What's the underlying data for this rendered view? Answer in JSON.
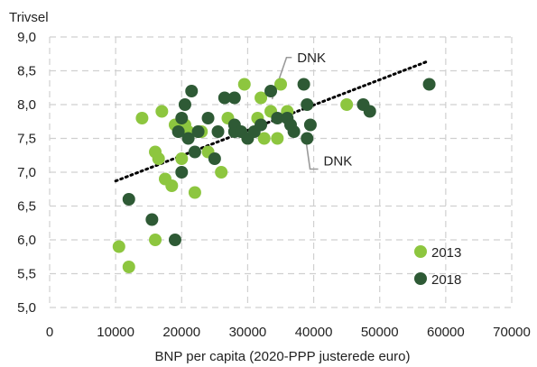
{
  "chart_data": {
    "type": "scatter",
    "ylabel": "Trivsel",
    "xlabel": "BNP per capita (2020-PPP justerede euro)",
    "xlim": [
      0,
      70000
    ],
    "ylim": [
      5.0,
      9.0
    ],
    "x_ticks": [
      "0",
      "10000",
      "20000",
      "30000",
      "40000",
      "50000",
      "60000",
      "70000"
    ],
    "y_ticks": [
      "5,0",
      "5,5",
      "6,0",
      "6,5",
      "7,0",
      "7,5",
      "8,0",
      "8,5",
      "9,0"
    ],
    "grid": true,
    "legend_position": "bottom-right",
    "colors": {
      "s2013": "#8dc63f",
      "s2018": "#2e5a35",
      "trend": "#000000",
      "grid": "#d0d0d0"
    },
    "series": [
      {
        "name": "2013",
        "points": [
          [
            10500,
            5.9
          ],
          [
            12000,
            5.6
          ],
          [
            14000,
            7.8
          ],
          [
            16000,
            6.0
          ],
          [
            16000,
            7.3
          ],
          [
            16500,
            7.2
          ],
          [
            17000,
            7.9
          ],
          [
            17500,
            6.9
          ],
          [
            18500,
            6.8
          ],
          [
            19000,
            7.7
          ],
          [
            20000,
            7.2
          ],
          [
            20500,
            7.7
          ],
          [
            21000,
            7.6
          ],
          [
            22000,
            6.7
          ],
          [
            22500,
            7.6
          ],
          [
            23000,
            7.6
          ],
          [
            24000,
            7.3
          ],
          [
            26000,
            7.0
          ],
          [
            27000,
            7.8
          ],
          [
            29500,
            8.3
          ],
          [
            30000,
            7.5
          ],
          [
            31500,
            7.8
          ],
          [
            32000,
            8.1
          ],
          [
            32500,
            7.5
          ],
          [
            33500,
            7.9
          ],
          [
            34500,
            7.5
          ],
          [
            35000,
            8.3
          ],
          [
            36000,
            7.9
          ],
          [
            45000,
            8.0
          ]
        ]
      },
      {
        "name": "2018",
        "points": [
          [
            12000,
            6.6
          ],
          [
            15500,
            6.3
          ],
          [
            19000,
            6.0
          ],
          [
            19500,
            7.6
          ],
          [
            20000,
            7.0
          ],
          [
            20000,
            7.8
          ],
          [
            20500,
            8.0
          ],
          [
            21000,
            7.5
          ],
          [
            21500,
            8.2
          ],
          [
            22000,
            7.3
          ],
          [
            22500,
            7.6
          ],
          [
            24000,
            7.8
          ],
          [
            25000,
            7.2
          ],
          [
            25500,
            7.6
          ],
          [
            26500,
            8.1
          ],
          [
            28000,
            7.6
          ],
          [
            28000,
            8.1
          ],
          [
            28000,
            7.7
          ],
          [
            29000,
            7.6
          ],
          [
            30000,
            7.5
          ],
          [
            31000,
            7.6
          ],
          [
            32000,
            7.7
          ],
          [
            33500,
            8.2
          ],
          [
            34500,
            7.8
          ],
          [
            36000,
            7.8
          ],
          [
            36500,
            7.7
          ],
          [
            37000,
            7.6
          ],
          [
            38500,
            8.3
          ],
          [
            39000,
            8.0
          ],
          [
            39000,
            7.5
          ],
          [
            39500,
            7.7
          ],
          [
            47500,
            8.0
          ],
          [
            48500,
            7.9
          ],
          [
            57500,
            8.3
          ]
        ]
      }
    ],
    "trendline": {
      "from": [
        10000,
        6.87
      ],
      "to": [
        57000,
        8.63
      ]
    },
    "annotations": [
      {
        "text": "DNK",
        "point": [
          33700,
          8.0
        ],
        "label_at": [
          37500,
          8.63
        ]
      },
      {
        "text": "DNK",
        "point": [
          38900,
          7.5
        ],
        "label_at": [
          41500,
          7.1
        ]
      }
    ]
  }
}
